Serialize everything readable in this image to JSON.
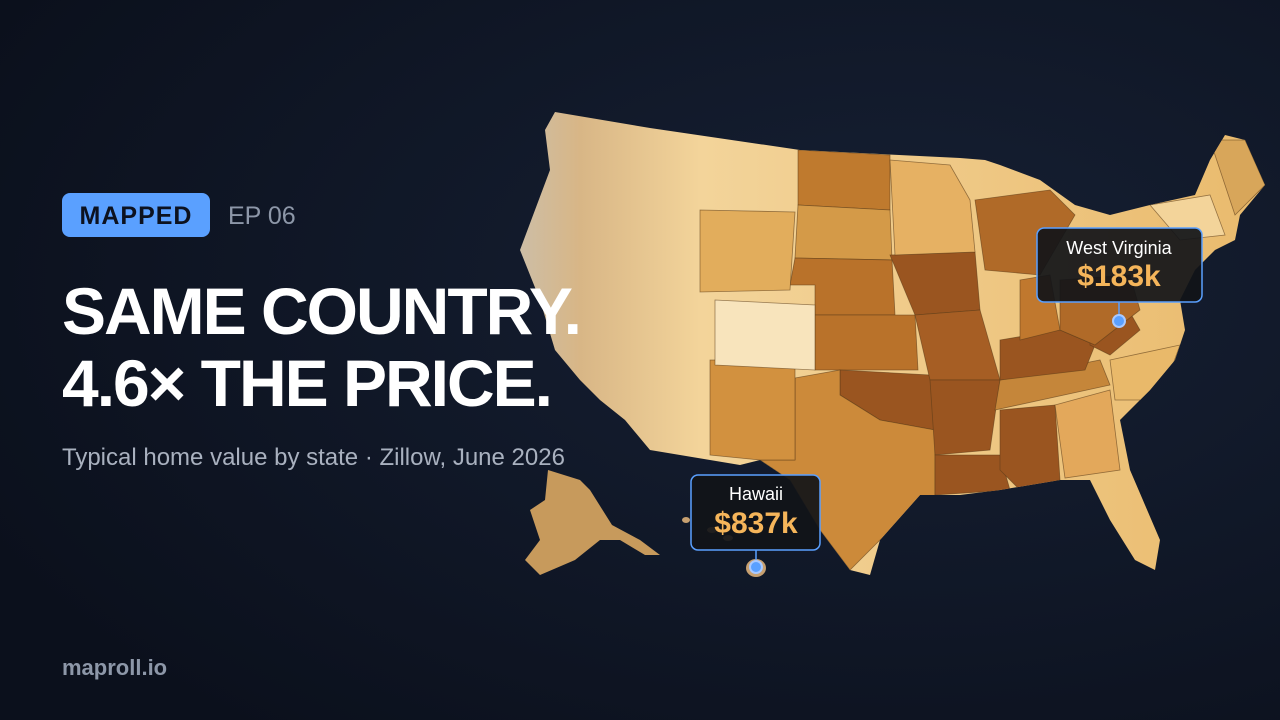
{
  "badge": "MAPPED",
  "episode": "EP 06",
  "title": [
    "SAME COUNTRY.",
    "4.6× THE PRICE."
  ],
  "subtitle": "Typical home value by state · Zillow, June 2026",
  "callouts": [
    {
      "state": "West Virginia",
      "value": "$183k"
    },
    {
      "state": "Hawaii",
      "value": "$837k"
    }
  ],
  "footer": "maproll.io"
}
